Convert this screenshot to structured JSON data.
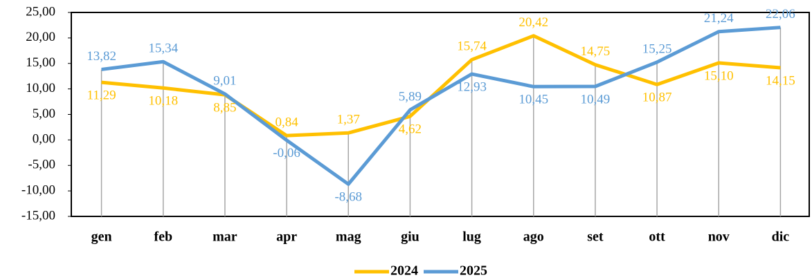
{
  "chart_data": {
    "type": "line",
    "categories": [
      "gen",
      "feb",
      "mar",
      "apr",
      "mag",
      "giu",
      "lug",
      "ago",
      "set",
      "ott",
      "nov",
      "dic"
    ],
    "series": [
      {
        "name": "2024",
        "color": "#FFC000",
        "values": [
          11.29,
          10.18,
          8.85,
          0.84,
          1.37,
          4.62,
          15.74,
          20.42,
          14.75,
          10.87,
          15.1,
          14.15
        ],
        "value_labels": [
          "11,29",
          "10,18",
          "8,85",
          "0,84",
          "1,37",
          "4,62",
          "15,74",
          "20,42",
          "14,75",
          "10,87",
          "15,10",
          "14,15"
        ]
      },
      {
        "name": "2025",
        "color": "#5B9BD5",
        "values": [
          13.82,
          15.34,
          9.01,
          -0.06,
          -8.68,
          5.89,
          12.93,
          10.45,
          10.49,
          15.25,
          21.24,
          22.06
        ],
        "value_labels": [
          "13,82",
          "15,34",
          "9,01",
          "-0,06",
          "-8,68",
          "5,89",
          "12,93",
          "10,45",
          "10,49",
          "15,25",
          "21,24",
          "22,06"
        ]
      }
    ],
    "ylim": [
      -15,
      25
    ],
    "yticks": [
      {
        "value": -15,
        "label": "-15,00"
      },
      {
        "value": -10,
        "label": "-10,00"
      },
      {
        "value": -5,
        "label": "-5,00"
      },
      {
        "value": 0,
        "label": "0,00"
      },
      {
        "value": 5,
        "label": "5,00"
      },
      {
        "value": 10,
        "label": "10,00"
      },
      {
        "value": 15,
        "label": "15,00"
      },
      {
        "value": 20,
        "label": "20,00"
      },
      {
        "value": 25,
        "label": "25,00"
      }
    ],
    "legend": "bottom"
  }
}
